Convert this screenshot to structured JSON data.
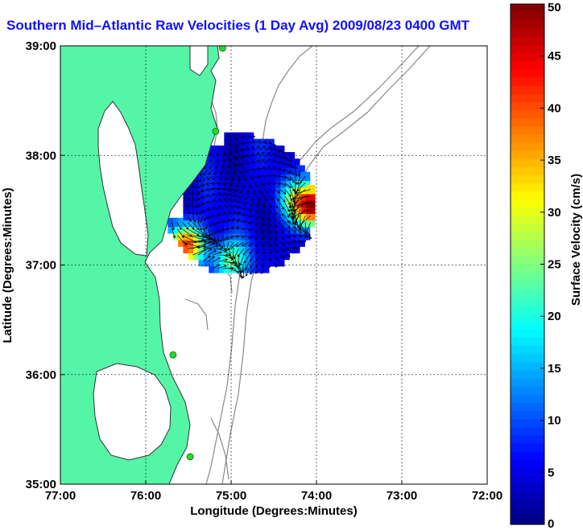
{
  "title": "Southern Mid–Atlantic Raw Velocities (1 Day Avg) 2009/08/23 0400 GMT",
  "colors": {
    "land": "#55f5a8",
    "title": "#1010ff",
    "coast": "#333333",
    "contour": "#888888",
    "station": "#22dd22"
  },
  "chart_data": {
    "type": "heatmap",
    "title": "Southern Mid–Atlantic Raw Velocities (1 Day Avg) 2009/08/23 0400 GMT",
    "xlabel": "Longitude (Degrees:Minutes)",
    "ylabel": "Latitude (Degrees:Minutes)",
    "x_ticks": [
      {
        "value": -77,
        "label": "77:00"
      },
      {
        "value": -76,
        "label": "76:00"
      },
      {
        "value": -75,
        "label": "75:00"
      },
      {
        "value": -74,
        "label": "74:00"
      },
      {
        "value": -73,
        "label": "73:00"
      },
      {
        "value": -72,
        "label": "72:00"
      }
    ],
    "y_ticks": [
      {
        "value": 35,
        "label": "35:00"
      },
      {
        "value": 36,
        "label": "36:00"
      },
      {
        "value": 37,
        "label": "37:00"
      },
      {
        "value": 38,
        "label": "38:00"
      },
      {
        "value": 39,
        "label": "39:00"
      }
    ],
    "xlim": [
      -77,
      -72
    ],
    "ylim": [
      35,
      39
    ],
    "grid": true,
    "colorbar": {
      "label": "Surface Velocity (cm/s)",
      "range": [
        0,
        50
      ],
      "ticks": [
        {
          "value": 0,
          "label": "0"
        },
        {
          "value": 5,
          "label": "5"
        },
        {
          "value": 10,
          "label": "10"
        },
        {
          "value": 15,
          "label": "15"
        },
        {
          "value": 20,
          "label": "20"
        },
        {
          "value": 25,
          "label": "25"
        },
        {
          "value": 30,
          "label": "30"
        },
        {
          "value": 35,
          "label": "35"
        },
        {
          "value": 40,
          "label": "40"
        },
        {
          "value": 45,
          "label": "45"
        },
        {
          "value": 50,
          "label": "50"
        }
      ]
    },
    "velocity_field": {
      "center": [
        -74.9,
        37.55
      ],
      "background_speed": 5,
      "hotspots": [
        {
          "lon": -73.97,
          "lat": 37.55,
          "speed": 48
        },
        {
          "lon": -75.5,
          "lat": 37.2,
          "speed": 40
        },
        {
          "lon": -75.0,
          "lat": 37.05,
          "speed": 24
        },
        {
          "lon": -74.2,
          "lat": 37.6,
          "speed": 22
        }
      ]
    },
    "stations": [
      {
        "lon": -75.1,
        "lat": 38.98
      },
      {
        "lon": -75.18,
        "lat": 38.22
      },
      {
        "lon": -75.68,
        "lat": 36.18
      },
      {
        "lon": -75.48,
        "lat": 35.25
      }
    ]
  }
}
